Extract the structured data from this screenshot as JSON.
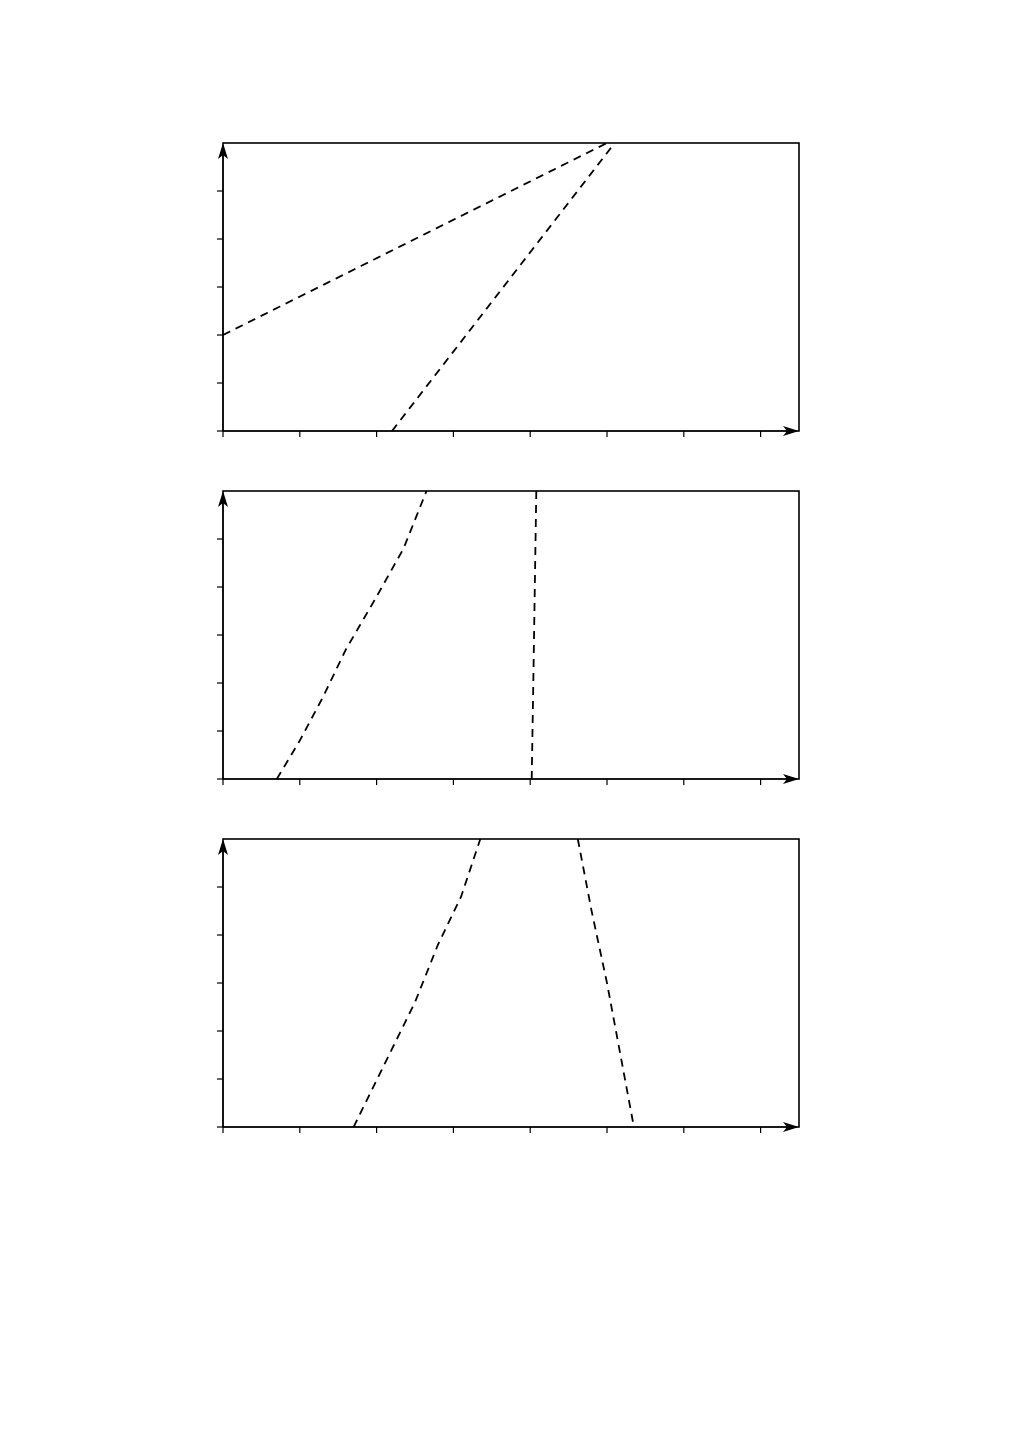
{
  "chart_data": [
    {
      "type": "line",
      "title": "",
      "xlabel": "",
      "ylabel": "",
      "xlim": [
        0,
        7.5
      ],
      "ylim": [
        0,
        6
      ],
      "x_ticks": [
        0,
        1,
        2,
        3,
        4,
        5,
        6,
        7
      ],
      "y_ticks": [
        0,
        1,
        2,
        3,
        4,
        5
      ],
      "grid": false,
      "legend": "none",
      "line_style": "dashed",
      "color": "#000000",
      "series": [
        {
          "points": [
            [
              0.0,
              2.0
            ],
            [
              5.0,
              6.0
            ]
          ]
        },
        {
          "points": [
            [
              2.2,
              0.0
            ],
            [
              5.1,
              6.0
            ]
          ]
        }
      ]
    },
    {
      "type": "line",
      "title": "",
      "xlabel": "",
      "ylabel": "",
      "xlim": [
        0,
        7.5
      ],
      "ylim": [
        0,
        6
      ],
      "x_ticks": [
        0,
        1,
        2,
        3,
        4,
        5,
        6,
        7
      ],
      "y_ticks": [
        0,
        1,
        2,
        3,
        4,
        5
      ],
      "grid": false,
      "legend": "none",
      "line_style": "dashed",
      "color": "#000000",
      "series": [
        {
          "points": [
            [
              0.7,
              0.0
            ],
            [
              1.0,
              0.8
            ],
            [
              1.3,
              1.7
            ],
            [
              1.6,
              2.7
            ],
            [
              2.0,
              3.8
            ],
            [
              2.35,
              4.8
            ],
            [
              2.65,
              6.0
            ]
          ]
        },
        {
          "points": [
            [
              4.02,
              0.0
            ],
            [
              4.04,
              2.0
            ],
            [
              4.06,
              4.0
            ],
            [
              4.08,
              6.0
            ]
          ]
        }
      ]
    },
    {
      "type": "line",
      "title": "",
      "xlabel": "",
      "ylabel": "",
      "xlim": [
        0,
        7.5
      ],
      "ylim": [
        0,
        6
      ],
      "x_ticks": [
        0,
        1,
        2,
        3,
        4,
        5,
        6,
        7
      ],
      "y_ticks": [
        0,
        1,
        2,
        3,
        4,
        5
      ],
      "grid": false,
      "legend": "none",
      "line_style": "dashed",
      "color": "#000000",
      "series": [
        {
          "points": [
            [
              1.7,
              0.0
            ],
            [
              2.1,
              1.3
            ],
            [
              2.5,
              2.6
            ],
            [
              2.8,
              3.8
            ],
            [
              3.1,
              4.8
            ],
            [
              3.35,
              6.0
            ]
          ]
        },
        {
          "points": [
            [
              4.62,
              6.0
            ],
            [
              4.8,
              4.5
            ],
            [
              5.0,
              3.0
            ],
            [
              5.35,
              0.0
            ]
          ]
        }
      ]
    }
  ]
}
